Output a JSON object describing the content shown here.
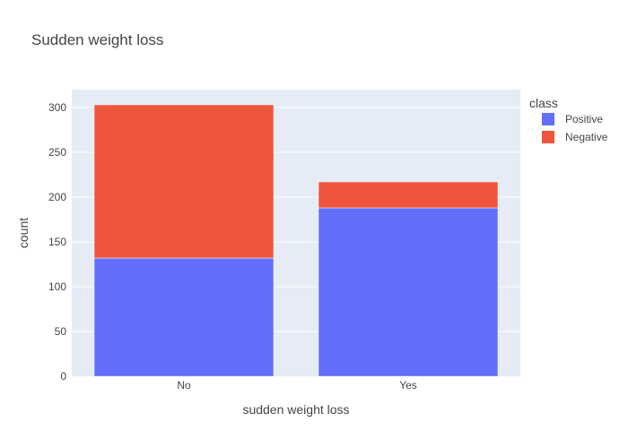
{
  "chart_data": {
    "type": "bar",
    "barmode": "stack",
    "title": "Sudden weight loss",
    "xlabel": "sudden weight loss",
    "ylabel": "count",
    "categories": [
      "No",
      "Yes"
    ],
    "series": [
      {
        "name": "Positive",
        "color": "#636efa",
        "values": [
          132,
          188
        ]
      },
      {
        "name": "Negative",
        "color": "#ef553b",
        "values": [
          171,
          29
        ]
      }
    ],
    "ylim": [
      0,
      320
    ],
    "yticks": [
      0,
      50,
      100,
      150,
      200,
      250,
      300
    ],
    "grid": true,
    "legend": {
      "title": "class",
      "placement": "right"
    },
    "colors": {
      "plot_bg": "#e5ecf6",
      "grid": "#ffffff"
    }
  }
}
